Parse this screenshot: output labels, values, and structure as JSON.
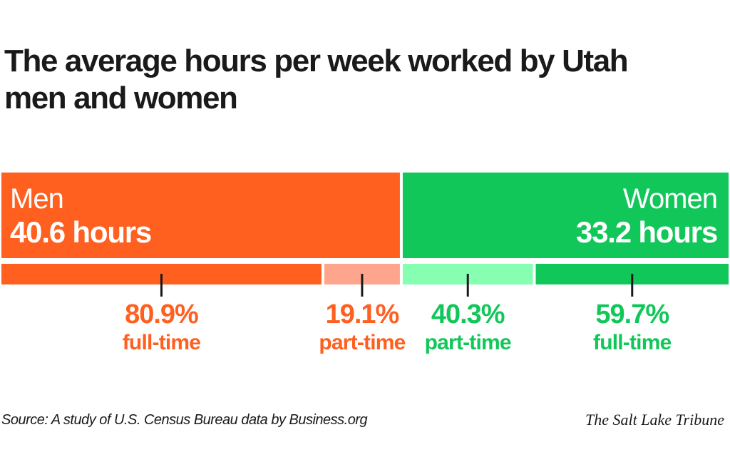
{
  "title": "The average hours per week worked by Utah men and women",
  "source": "Source: A study of U.S. Census Bureau data by Business.org",
  "credit": "The Salt Lake Tribune",
  "colors": {
    "men": "#ff5f1f",
    "men_light": "#ffa58e",
    "women": "#12c75a",
    "women_light": "#86ffb3",
    "tick": "#1a1a1a"
  },
  "chart_data": {
    "type": "bar",
    "groups": [
      {
        "name": "Men",
        "value": 40.6,
        "value_label": "40.6 hours",
        "segments": [
          {
            "value": 80.9,
            "value_label": "80.9%",
            "label": "full-time"
          },
          {
            "value": 19.1,
            "value_label": "19.1%",
            "label": "part-time"
          }
        ]
      },
      {
        "name": "Women",
        "value": 33.2,
        "value_label": "33.2 hours",
        "segments": [
          {
            "value": 40.3,
            "value_label": "40.3%",
            "label": "part-time"
          },
          {
            "value": 59.7,
            "value_label": "59.7%",
            "label": "full-time"
          }
        ]
      }
    ]
  }
}
